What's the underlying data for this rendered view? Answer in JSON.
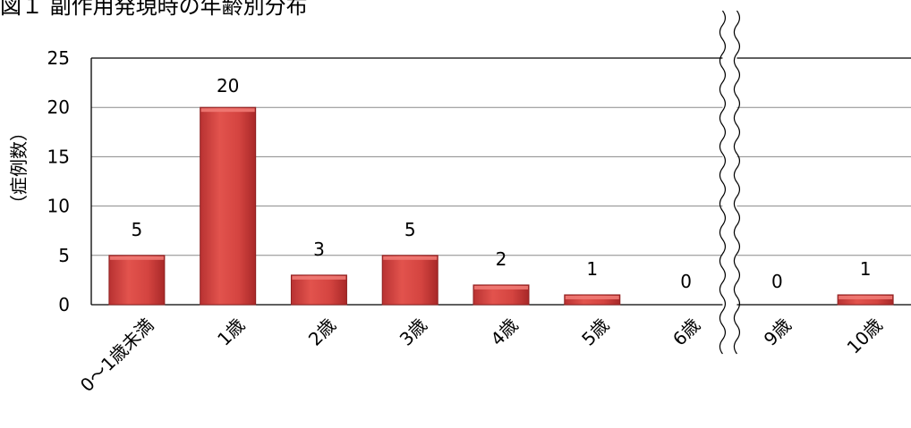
{
  "title": "図１ 副作用発現時の年齢別分布",
  "chart_data": {
    "type": "bar",
    "categories": [
      "0～1歳未満",
      "1歳",
      "2歳",
      "3歳",
      "4歳",
      "5歳",
      "6歳",
      "9歳",
      "10歳"
    ],
    "values": [
      5,
      20,
      3,
      5,
      2,
      1,
      0,
      0,
      1
    ],
    "data_labels": [
      "5",
      "20",
      "3",
      "5",
      "2",
      "1",
      "0",
      "0",
      "1"
    ],
    "ylabel": "（症例数）",
    "ylim": [
      0,
      25
    ],
    "yticks": [
      0,
      5,
      10,
      15,
      20,
      25
    ],
    "grid": true,
    "axis_break_between": [
      "6歳",
      "9歳"
    ],
    "bar_color": "#d84a45"
  }
}
